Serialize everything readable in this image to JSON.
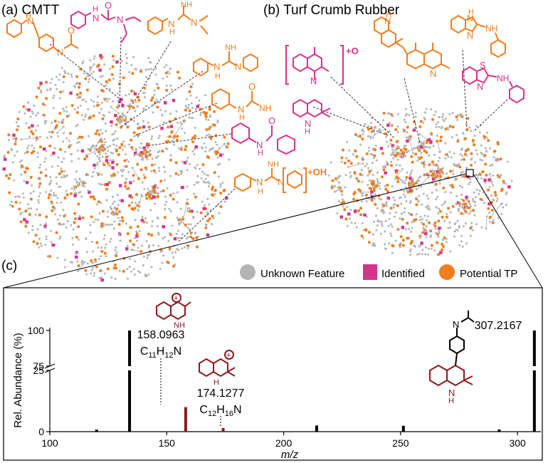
{
  "panels": {
    "a": {
      "label": "(a) CMTT"
    },
    "b": {
      "label": "(b) Turf Crumb Rubber"
    },
    "c": {
      "label": "(c)"
    }
  },
  "legend": {
    "items": [
      {
        "label": "Unknown Feature",
        "color": "#b4b4b4",
        "shape": "circle"
      },
      {
        "label": "Identified",
        "color": "#d6338c",
        "shape": "square"
      },
      {
        "label": "Potential TP",
        "color": "#f07d1e",
        "shape": "circle"
      }
    ]
  },
  "colors": {
    "unknown": "#b4b4b4",
    "identified": "#d6338c",
    "potential": "#f07d1e",
    "fragment": "#8b1a1a",
    "edge": "#a8a8a8"
  },
  "structures": {
    "cmtt_plus_oh": "+OH",
    "tcr_plus_o": "+O"
  },
  "chart_data": {
    "type": "bar",
    "title": "",
    "xlabel": "m/z",
    "ylabel": "Rel. Abundance (%)",
    "xlim": [
      100,
      310
    ],
    "ylim": [
      0,
      100
    ],
    "y_break": [
      25,
      75
    ],
    "xticks": [
      100,
      150,
      200,
      250,
      300
    ],
    "yticks": [
      0,
      25,
      75,
      100
    ],
    "peaks": [
      {
        "mz": 120.0,
        "abundance": 0.8,
        "color": "black"
      },
      {
        "mz": 134.1,
        "abundance": 100,
        "color": "black"
      },
      {
        "mz": 158.0963,
        "abundance": 10,
        "color": "red"
      },
      {
        "mz": 174.1277,
        "abundance": 1.5,
        "color": "red"
      },
      {
        "mz": 214.1,
        "abundance": 2.5,
        "color": "black"
      },
      {
        "mz": 251.2,
        "abundance": 2.4,
        "color": "black"
      },
      {
        "mz": 292.2,
        "abundance": 0.9,
        "color": "black"
      },
      {
        "mz": 307.2167,
        "abundance": 100,
        "color": "black"
      }
    ],
    "annotations": [
      {
        "text": "158.0963",
        "formula_C": "11",
        "formula_H": "12",
        "formula_N": "N"
      },
      {
        "text": "174.1277",
        "formula_C": "12",
        "formula_H": "16",
        "formula_N": "N"
      },
      {
        "text": "307.2167"
      }
    ]
  }
}
